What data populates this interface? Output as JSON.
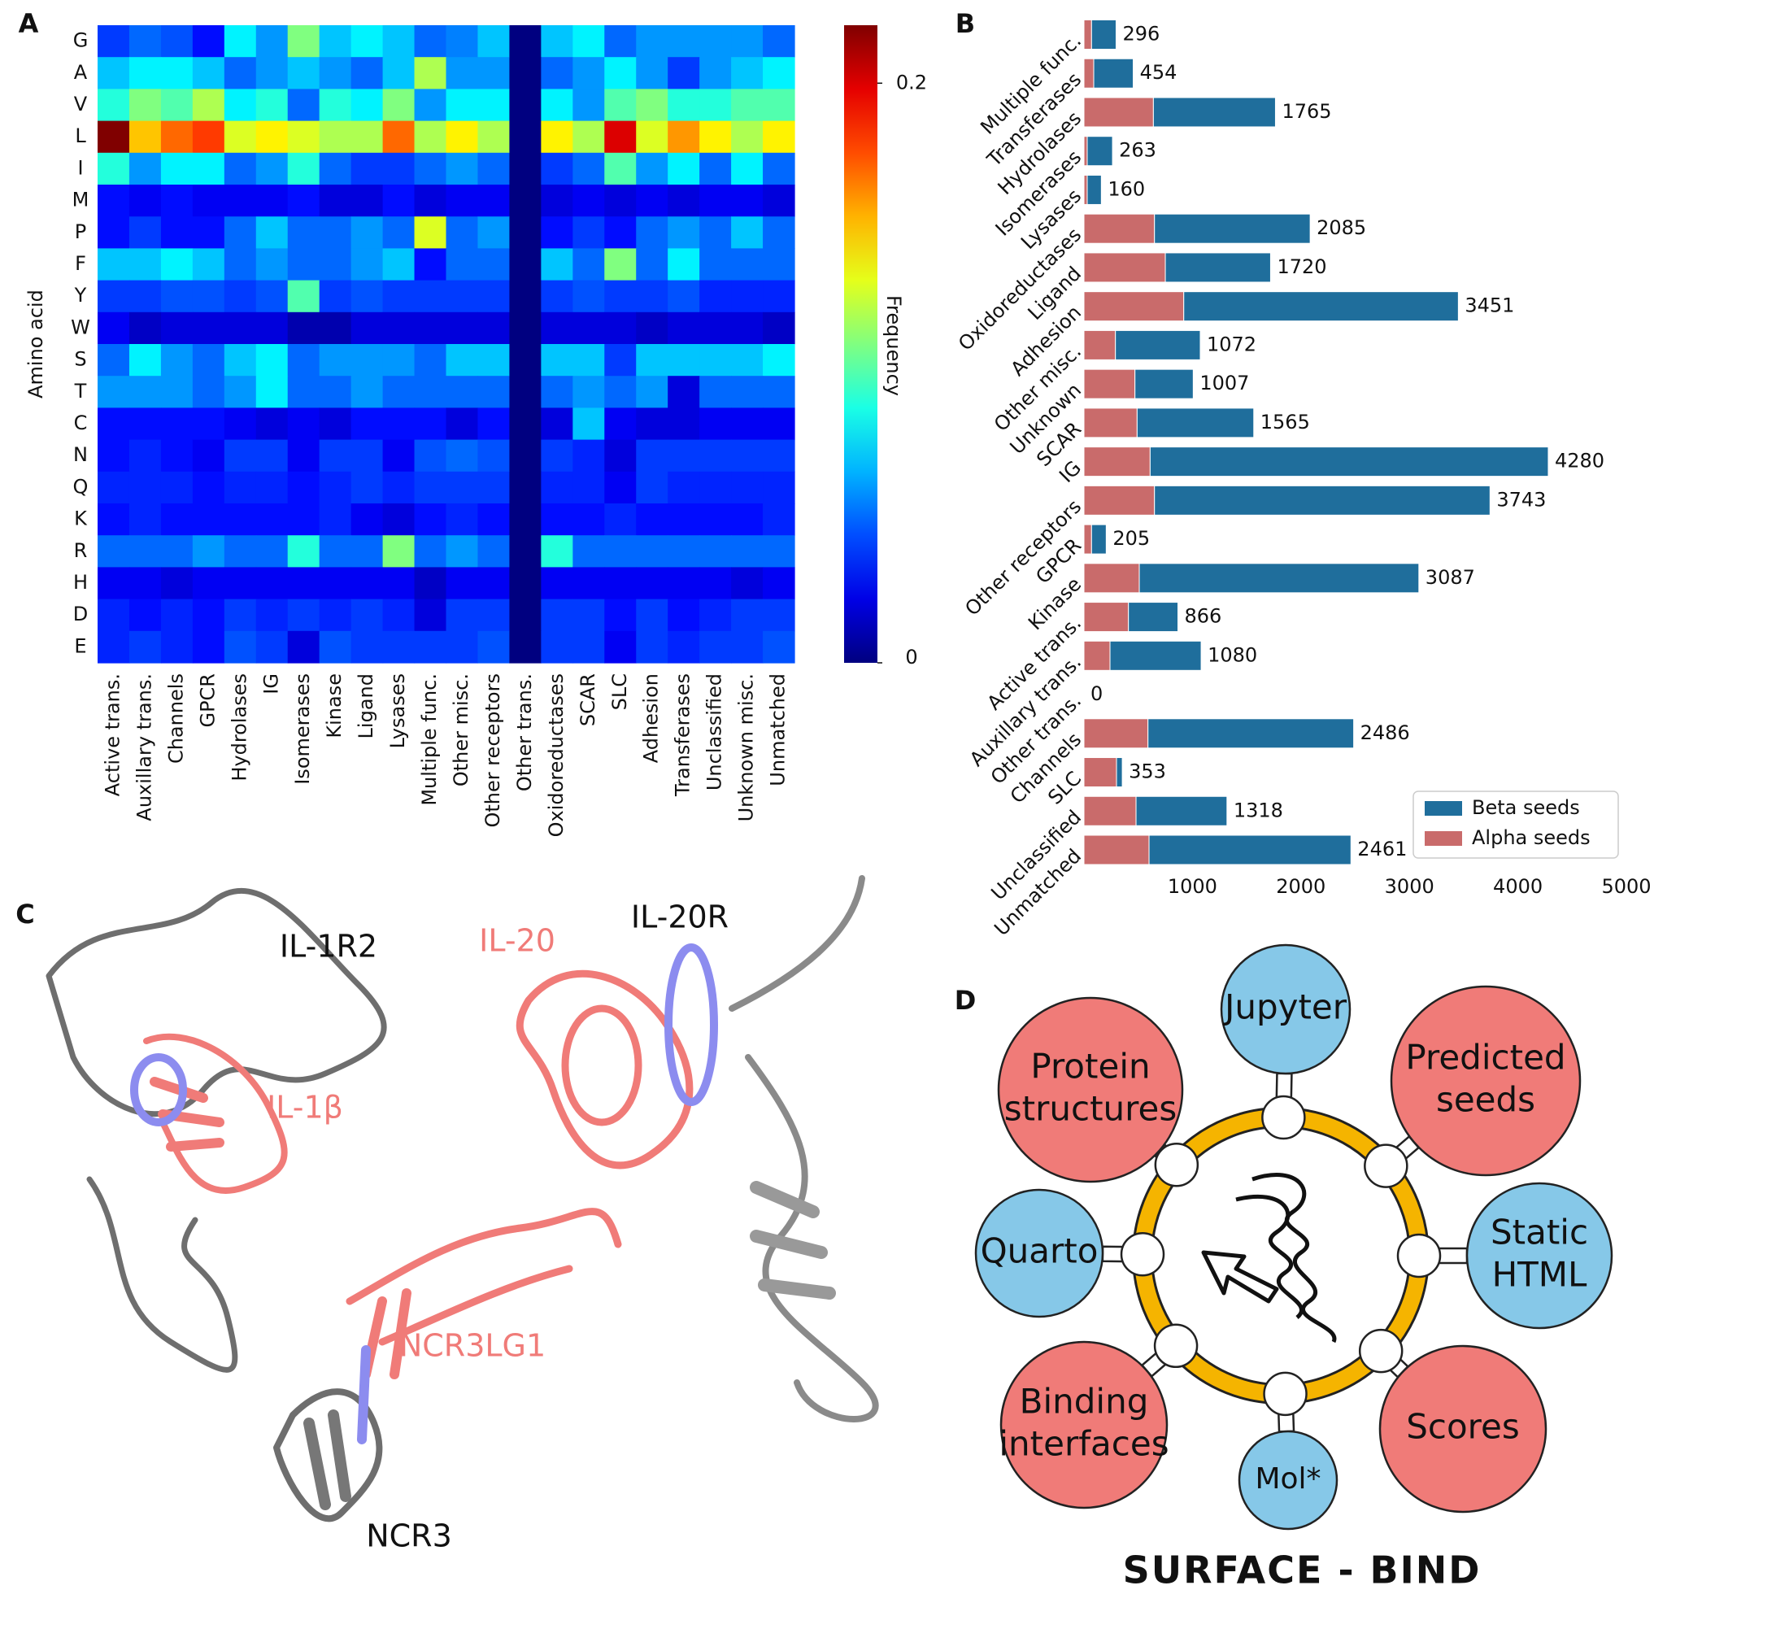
{
  "panels": [
    "A",
    "B",
    "C",
    "D"
  ],
  "chart_data": [
    {
      "type": "heatmap",
      "ylabel": "Amino acid",
      "colorbar_label": "Frequency",
      "colormap": "jet",
      "categories": [
        "Active trans.",
        "Auxillary trans.",
        "Channels",
        "GPCR",
        "Hydrolases",
        "IG",
        "Isomerases",
        "Kinase",
        "Ligand",
        "Lysases",
        "Multiple func.",
        "Other misc.",
        "Other receptors",
        "Other trans.",
        "Oxidoreductases",
        "SCAR",
        "SLC",
        "Adhesion",
        "Transferases",
        "Unclassified",
        "Unknown misc.",
        "Unmatched"
      ],
      "rows": [
        "G",
        "A",
        "V",
        "L",
        "I",
        "M",
        "P",
        "F",
        "Y",
        "W",
        "S",
        "T",
        "C",
        "N",
        "Q",
        "K",
        "R",
        "H",
        "D",
        "E"
      ],
      "values": [
        [
          0.04,
          0.05,
          0.045,
          0.03,
          0.08,
          0.06,
          0.11,
          0.07,
          0.08,
          0.07,
          0.05,
          0.055,
          0.07,
          0,
          0.07,
          0.08,
          0.05,
          0.06,
          0.06,
          0.06,
          0.06,
          0.05
        ],
        [
          0.07,
          0.08,
          0.08,
          0.07,
          0.05,
          0.06,
          0.07,
          0.06,
          0.05,
          0.07,
          0.12,
          0.06,
          0.06,
          0,
          0.05,
          0.06,
          0.08,
          0.06,
          0.04,
          0.06,
          0.07,
          0.08
        ],
        [
          0.09,
          0.11,
          0.1,
          0.12,
          0.08,
          0.09,
          0.05,
          0.09,
          0.08,
          0.11,
          0.06,
          0.08,
          0.08,
          0,
          0.08,
          0.06,
          0.1,
          0.11,
          0.09,
          0.09,
          0.1,
          0.1
        ],
        [
          0.22,
          0.15,
          0.17,
          0.18,
          0.13,
          0.14,
          0.13,
          0.12,
          0.12,
          0.17,
          0.12,
          0.14,
          0.12,
          0,
          0.14,
          0.12,
          0.2,
          0.13,
          0.16,
          0.14,
          0.12,
          0.14
        ],
        [
          0.09,
          0.06,
          0.08,
          0.08,
          0.05,
          0.06,
          0.09,
          0.05,
          0.04,
          0.04,
          0.05,
          0.06,
          0.05,
          0,
          0.04,
          0.05,
          0.1,
          0.06,
          0.08,
          0.05,
          0.08,
          0.05
        ],
        [
          0.03,
          0.025,
          0.03,
          0.025,
          0.025,
          0.025,
          0.03,
          0.02,
          0.02,
          0.03,
          0.02,
          0.025,
          0.025,
          0,
          0.02,
          0.025,
          0.02,
          0.025,
          0.02,
          0.025,
          0.025,
          0.02
        ],
        [
          0.03,
          0.04,
          0.03,
          0.03,
          0.05,
          0.07,
          0.05,
          0.05,
          0.06,
          0.05,
          0.13,
          0.05,
          0.06,
          0,
          0.03,
          0.04,
          0.03,
          0.05,
          0.06,
          0.05,
          0.07,
          0.05
        ],
        [
          0.07,
          0.07,
          0.08,
          0.07,
          0.05,
          0.06,
          0.05,
          0.05,
          0.06,
          0.07,
          0.03,
          0.05,
          0.05,
          0,
          0.07,
          0.05,
          0.11,
          0.05,
          0.08,
          0.05,
          0.05,
          0.05
        ],
        [
          0.04,
          0.04,
          0.045,
          0.045,
          0.04,
          0.045,
          0.1,
          0.04,
          0.045,
          0.04,
          0.04,
          0.04,
          0.04,
          0,
          0.04,
          0.045,
          0.04,
          0.04,
          0.045,
          0.035,
          0.035,
          0.035
        ],
        [
          0.025,
          0.015,
          0.02,
          0.02,
          0.02,
          0.02,
          0.01,
          0.01,
          0.02,
          0.02,
          0.02,
          0.02,
          0.02,
          0,
          0.02,
          0.02,
          0.02,
          0.015,
          0.02,
          0.02,
          0.02,
          0.015
        ],
        [
          0.05,
          0.08,
          0.06,
          0.05,
          0.07,
          0.08,
          0.05,
          0.06,
          0.06,
          0.06,
          0.05,
          0.07,
          0.07,
          0,
          0.07,
          0.07,
          0.04,
          0.07,
          0.07,
          0.07,
          0.07,
          0.08
        ],
        [
          0.06,
          0.06,
          0.06,
          0.05,
          0.06,
          0.08,
          0.05,
          0.05,
          0.06,
          0.05,
          0.05,
          0.05,
          0.05,
          0,
          0.05,
          0.06,
          0.05,
          0.06,
          0.02,
          0.05,
          0.05,
          0.05
        ],
        [
          0.03,
          0.03,
          0.03,
          0.03,
          0.025,
          0.02,
          0.025,
          0.02,
          0.03,
          0.03,
          0.03,
          0.02,
          0.03,
          0,
          0.02,
          0.07,
          0.025,
          0.02,
          0.02,
          0.025,
          0.025,
          0.025
        ],
        [
          0.03,
          0.035,
          0.03,
          0.025,
          0.04,
          0.04,
          0.025,
          0.04,
          0.04,
          0.025,
          0.045,
          0.05,
          0.045,
          0,
          0.04,
          0.035,
          0.02,
          0.04,
          0.04,
          0.04,
          0.04,
          0.04
        ],
        [
          0.035,
          0.035,
          0.035,
          0.03,
          0.035,
          0.035,
          0.03,
          0.035,
          0.04,
          0.035,
          0.04,
          0.04,
          0.04,
          0,
          0.035,
          0.035,
          0.025,
          0.04,
          0.035,
          0.035,
          0.035,
          0.035
        ],
        [
          0.03,
          0.035,
          0.03,
          0.03,
          0.03,
          0.03,
          0.03,
          0.035,
          0.025,
          0.02,
          0.03,
          0.035,
          0.03,
          0,
          0.03,
          0.03,
          0.035,
          0.03,
          0.03,
          0.03,
          0.03,
          0.035
        ],
        [
          0.05,
          0.05,
          0.05,
          0.06,
          0.05,
          0.05,
          0.09,
          0.05,
          0.05,
          0.11,
          0.05,
          0.06,
          0.05,
          0,
          0.09,
          0.05,
          0.05,
          0.05,
          0.05,
          0.05,
          0.05,
          0.05
        ],
        [
          0.025,
          0.025,
          0.02,
          0.025,
          0.025,
          0.025,
          0.025,
          0.025,
          0.025,
          0.025,
          0.015,
          0.025,
          0.025,
          0,
          0.025,
          0.025,
          0.025,
          0.025,
          0.025,
          0.025,
          0.02,
          0.025
        ],
        [
          0.035,
          0.03,
          0.035,
          0.03,
          0.04,
          0.035,
          0.04,
          0.035,
          0.04,
          0.035,
          0.02,
          0.04,
          0.04,
          0,
          0.04,
          0.04,
          0.03,
          0.04,
          0.03,
          0.035,
          0.04,
          0.04
        ],
        [
          0.035,
          0.04,
          0.035,
          0.03,
          0.045,
          0.04,
          0.02,
          0.045,
          0.04,
          0.04,
          0.04,
          0.04,
          0.045,
          0,
          0.04,
          0.04,
          0.025,
          0.04,
          0.035,
          0.04,
          0.04,
          0.045
        ]
      ],
      "zlim": [
        0,
        0.22
      ],
      "zticks": [
        0,
        0.2
      ]
    },
    {
      "type": "bar",
      "orientation": "horizontal",
      "stacked": true,
      "legend": "lower right",
      "categories": [
        "Multiple func.",
        "Transferases",
        "Hydrolases",
        "Isomerases",
        "Lysases",
        "Oxidoreductases",
        "Ligand",
        "Adhesion",
        "Other misc.",
        "Unknown",
        "SCAR",
        "IG",
        "Other receptors",
        "GPCR",
        "Kinase",
        "Active trans.",
        "Auxillary trans.",
        "Other trans.",
        "Channels",
        "SLC",
        "Unclassified",
        "Unmatched"
      ],
      "series": [
        {
          "name": "Beta seeds",
          "color": "#1f6e9c",
          "values": [
            226,
            364,
            1125,
            233,
            130,
            1435,
            970,
            2531,
            782,
            537,
            1075,
            3670,
            3093,
            135,
            2577,
            456,
            840,
            0,
            1896,
            53,
            838,
            1861
          ]
        },
        {
          "name": "Alpha seeds",
          "color": "#c96b6b",
          "values": [
            70,
            90,
            640,
            30,
            30,
            650,
            750,
            920,
            290,
            470,
            490,
            610,
            650,
            70,
            510,
            410,
            240,
            0,
            590,
            300,
            480,
            600
          ]
        }
      ],
      "total_labels": [
        296,
        454,
        1765,
        263,
        160,
        2085,
        1720,
        3451,
        1072,
        1007,
        1565,
        4280,
        3743,
        205,
        3087,
        866,
        1080,
        0,
        2486,
        353,
        1318,
        2461
      ],
      "xlim": [
        0,
        5000
      ],
      "xticks": [
        1000,
        2000,
        3000,
        4000,
        5000
      ]
    }
  ],
  "structures": {
    "labels": [
      "IL-1R2",
      "IL-1β",
      "IL-20",
      "IL-20R",
      "NCR3LG1",
      "NCR3"
    ]
  },
  "diagram": {
    "title": "SURFACE - BIND",
    "nodes": [
      {
        "lines": [
          "Jupyter"
        ],
        "color": "#86c8e8"
      },
      {
        "lines": [
          "Predicted",
          "seeds"
        ],
        "color": "#f07b78"
      },
      {
        "lines": [
          "Static",
          "HTML"
        ],
        "color": "#86c8e8"
      },
      {
        "lines": [
          "Scores"
        ],
        "color": "#f07b78"
      },
      {
        "lines": [
          "Mol*"
        ],
        "color": "#86c8e8"
      },
      {
        "lines": [
          "Binding",
          "interfaces"
        ],
        "color": "#f07b78"
      },
      {
        "lines": [
          "Quarto"
        ],
        "color": "#86c8e8"
      },
      {
        "lines": [
          "Protein",
          "structures"
        ],
        "color": "#f07b78"
      }
    ]
  }
}
